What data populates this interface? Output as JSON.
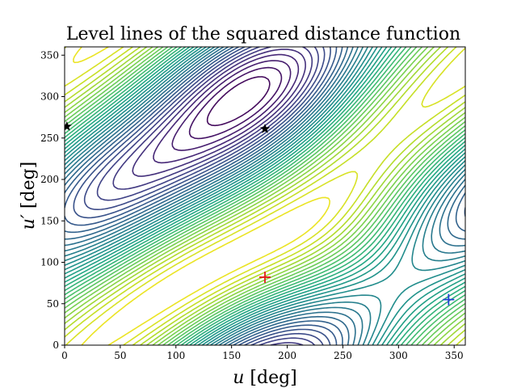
{
  "chart_data": {
    "type": "contour",
    "title": "Level lines of the squared distance function",
    "xlabel": {
      "var": "u",
      "unit": " [deg]"
    },
    "ylabel": {
      "var": "u′",
      "unit": " [deg]"
    },
    "xlim": [
      0,
      360
    ],
    "ylim": [
      0,
      360
    ],
    "xticks": [
      0,
      50,
      100,
      150,
      200,
      250,
      300,
      350
    ],
    "yticks": [
      0,
      50,
      100,
      150,
      200,
      250,
      300,
      350
    ],
    "colormap": "viridis",
    "markers": [
      {
        "kind": "minimum",
        "symbol": "+",
        "color": "#e41a1c",
        "x": 180,
        "y": 82
      },
      {
        "kind": "minimum",
        "symbol": "+",
        "color": "#1f3fd6",
        "x": 345,
        "y": 55
      },
      {
        "kind": "saddle",
        "symbol": "★",
        "color": "#000000",
        "x": 180,
        "y": 261
      },
      {
        "kind": "saddle",
        "symbol": "★",
        "color": "#000000",
        "x": 2,
        "y": 264
      }
    ]
  }
}
